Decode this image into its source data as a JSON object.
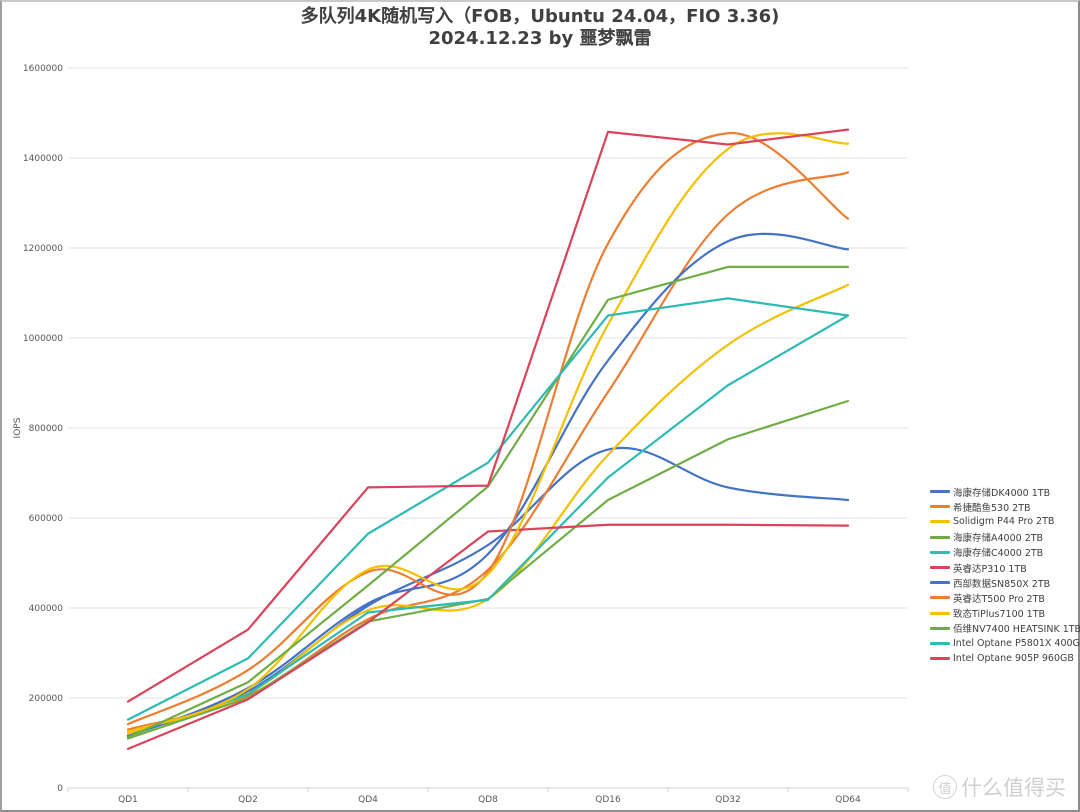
{
  "title": {
    "line1": "多队列4K随机写入（FOB，Ubuntu 24.04，FIO 3.36)",
    "line2": "2024.12.23 by 噩梦飘雷"
  },
  "watermark": {
    "icon": "值",
    "text": "什么值得买"
  },
  "chart_data": {
    "type": "line",
    "title": "多队列4K随机写入（FOB，Ubuntu 24.04，FIO 3.36) 2024.12.23 by 噩梦飘雷",
    "xlabel": "",
    "ylabel": "IOPS",
    "ylim": [
      0,
      1600000
    ],
    "yticks": [
      0,
      200000,
      400000,
      600000,
      800000,
      1000000,
      1200000,
      1400000,
      1600000
    ],
    "grid": true,
    "legend_position": "right",
    "categories": [
      "QD1",
      "QD2",
      "QD4",
      "QD8",
      "QD16",
      "QD32",
      "QD64"
    ],
    "series": [
      {
        "name": "海康存储DK4000 1TB",
        "color": "#4472C4",
        "smooth": true,
        "values": [
          118000,
          215000,
          405000,
          540000,
          752000,
          668000,
          640000
        ]
      },
      {
        "name": "希捷酷鱼530 2TB",
        "color": "#ED7D31",
        "smooth": true,
        "values": [
          130000,
          205000,
          375000,
          485000,
          880000,
          1275000,
          1368000
        ]
      },
      {
        "name": "Solidigm P44 Pro 2TB",
        "color": "#F5C000",
        "smooth": true,
        "values": [
          120000,
          210000,
          395000,
          420000,
          740000,
          985000,
          1118000
        ]
      },
      {
        "name": "海康存储A4000 2TB",
        "color": "#70AD47",
        "smooth": false,
        "values": [
          110000,
          200000,
          370000,
          420000,
          640000,
          775000,
          860000
        ]
      },
      {
        "name": "海康存储C4000 2TB",
        "color": "#2EBAB5",
        "smooth": false,
        "values": [
          115000,
          208000,
          390000,
          418000,
          690000,
          895000,
          1050000
        ]
      },
      {
        "name": "英睿达P310 1TB",
        "color": "#D9445A",
        "smooth": false,
        "values": [
          87000,
          197000,
          368000,
          570000,
          585000,
          585000,
          583000
        ]
      },
      {
        "name": "西部数据SN850X 2TB",
        "color": "#4472C4",
        "smooth": true,
        "values": [
          115000,
          222000,
          410000,
          520000,
          950000,
          1215000,
          1197000
        ]
      },
      {
        "name": "英睿达T500 Pro 2TB",
        "color": "#ED7D31",
        "smooth": true,
        "values": [
          142000,
          262000,
          480000,
          480000,
          1210000,
          1455000,
          1265000
        ]
      },
      {
        "name": "致态TiPlus7100 1TB",
        "color": "#F5C000",
        "smooth": true,
        "values": [
          125000,
          220000,
          485000,
          475000,
          1030000,
          1420000,
          1432000
        ]
      },
      {
        "name": "佰维NV7400 HEATSINK 1TB",
        "color": "#70AD47",
        "smooth": false,
        "values": [
          112000,
          235000,
          450000,
          670000,
          1085000,
          1158000,
          1158000
        ]
      },
      {
        "name": "Intel Optane P5801X 400GB",
        "color": "#2EBAB5",
        "smooth": false,
        "values": [
          152000,
          288000,
          565000,
          723000,
          1050000,
          1088000,
          1050000
        ]
      },
      {
        "name": "Intel Optane 905P 960GB",
        "color": "#D9445A",
        "smooth": false,
        "values": [
          192000,
          352000,
          668000,
          672000,
          1458000,
          1430000,
          1463000
        ]
      }
    ]
  }
}
